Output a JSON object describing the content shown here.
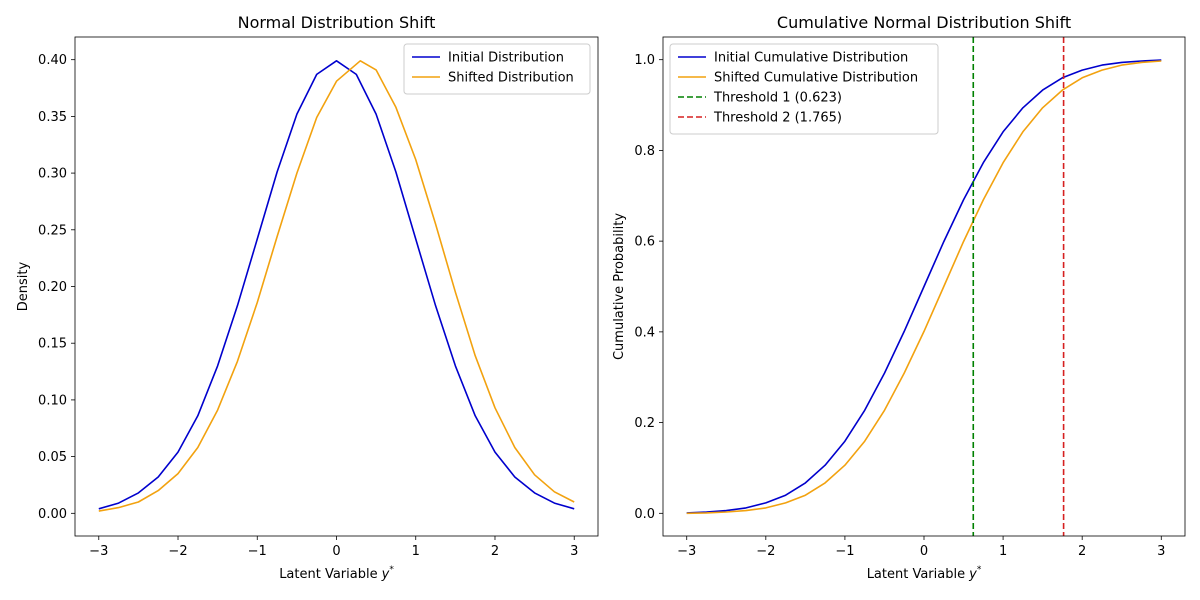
{
  "chart_data": [
    {
      "type": "line",
      "title": "Normal Distribution Shift",
      "xlabel": "Latent Variable",
      "xlabel_symbol": "y",
      "xlabel_sup": "*",
      "ylabel": "Density",
      "xlim": [
        -3.3,
        3.3
      ],
      "ylim": [
        -0.02,
        0.42
      ],
      "xticks": [
        -3,
        -2,
        -1,
        0,
        1,
        2,
        3
      ],
      "xtick_labels": [
        "−3",
        "−2",
        "−1",
        "0",
        "1",
        "2",
        "3"
      ],
      "yticks": [
        0.0,
        0.05,
        0.1,
        0.15,
        0.2,
        0.25,
        0.3,
        0.35,
        0.4
      ],
      "ytick_labels": [
        "0.00",
        "0.05",
        "0.10",
        "0.15",
        "0.20",
        "0.25",
        "0.30",
        "0.35",
        "0.40"
      ],
      "grid": false,
      "legend_position": "top-right",
      "series": [
        {
          "name": "Initial Distribution",
          "color": "#0000cd",
          "x": [
            -3.0,
            -2.75,
            -2.5,
            -2.25,
            -2.0,
            -1.75,
            -1.5,
            -1.25,
            -1.0,
            -0.75,
            -0.5,
            -0.25,
            0.0,
            0.25,
            0.5,
            0.75,
            1.0,
            1.25,
            1.5,
            1.75,
            2.0,
            2.25,
            2.5,
            2.75,
            3.0
          ],
          "values": [
            0.004,
            0.009,
            0.018,
            0.032,
            0.054,
            0.086,
            0.13,
            0.183,
            0.242,
            0.301,
            0.352,
            0.387,
            0.399,
            0.387,
            0.352,
            0.301,
            0.242,
            0.183,
            0.13,
            0.086,
            0.054,
            0.032,
            0.018,
            0.009,
            0.004
          ]
        },
        {
          "name": "Shifted Distribution",
          "color": "#f2a20f",
          "x": [
            -3.0,
            -2.75,
            -2.5,
            -2.25,
            -2.0,
            -1.75,
            -1.5,
            -1.25,
            -1.0,
            -0.75,
            -0.5,
            -0.25,
            0.0,
            0.3,
            0.5,
            0.75,
            1.0,
            1.25,
            1.5,
            1.75,
            2.0,
            2.25,
            2.5,
            2.75,
            3.0
          ],
          "values": [
            0.002,
            0.005,
            0.01,
            0.02,
            0.035,
            0.058,
            0.091,
            0.134,
            0.186,
            0.244,
            0.3,
            0.349,
            0.381,
            0.399,
            0.391,
            0.358,
            0.312,
            0.255,
            0.195,
            0.139,
            0.093,
            0.058,
            0.034,
            0.019,
            0.01
          ]
        }
      ]
    },
    {
      "type": "line",
      "title": "Cumulative Normal Distribution Shift",
      "xlabel": "Latent Variable",
      "xlabel_symbol": "y",
      "xlabel_sup": "*",
      "ylabel": "Cumulative Probability",
      "xlim": [
        -3.3,
        3.3
      ],
      "ylim": [
        -0.05,
        1.05
      ],
      "xticks": [
        -3,
        -2,
        -1,
        0,
        1,
        2,
        3
      ],
      "xtick_labels": [
        "−3",
        "−2",
        "−1",
        "0",
        "1",
        "2",
        "3"
      ],
      "yticks": [
        0.0,
        0.2,
        0.4,
        0.6,
        0.8,
        1.0
      ],
      "ytick_labels": [
        "0.0",
        "0.2",
        "0.4",
        "0.6",
        "0.8",
        "1.0"
      ],
      "grid": false,
      "legend_position": "top-left",
      "series": [
        {
          "name": "Initial Cumulative Distribution",
          "color": "#0000cd",
          "x": [
            -3.0,
            -2.75,
            -2.5,
            -2.25,
            -2.0,
            -1.75,
            -1.5,
            -1.25,
            -1.0,
            -0.75,
            -0.5,
            -0.25,
            0.0,
            0.25,
            0.5,
            0.75,
            1.0,
            1.25,
            1.5,
            1.75,
            2.0,
            2.25,
            2.5,
            2.75,
            3.0
          ],
          "values": [
            0.001,
            0.003,
            0.006,
            0.012,
            0.023,
            0.04,
            0.067,
            0.106,
            0.159,
            0.227,
            0.309,
            0.401,
            0.5,
            0.599,
            0.691,
            0.773,
            0.841,
            0.894,
            0.933,
            0.96,
            0.977,
            0.988,
            0.994,
            0.997,
            0.999
          ]
        },
        {
          "name": "Shifted Cumulative Distribution",
          "color": "#f2a20f",
          "x": [
            -3.0,
            -2.75,
            -2.5,
            -2.25,
            -2.0,
            -1.75,
            -1.5,
            -1.25,
            -1.0,
            -0.75,
            -0.5,
            -0.25,
            0.0,
            0.25,
            0.5,
            0.75,
            1.0,
            1.25,
            1.5,
            1.75,
            2.0,
            2.25,
            2.5,
            2.75,
            3.0
          ],
          "values": [
            0.0,
            0.001,
            0.003,
            0.006,
            0.012,
            0.023,
            0.04,
            0.067,
            0.106,
            0.159,
            0.227,
            0.309,
            0.401,
            0.5,
            0.599,
            0.691,
            0.773,
            0.841,
            0.894,
            0.933,
            0.96,
            0.977,
            0.988,
            0.994,
            0.997
          ]
        }
      ],
      "thresholds": [
        {
          "name": "Threshold 1 (0.623)",
          "x": 0.623,
          "color": "#008000"
        },
        {
          "name": "Threshold 2 (1.765)",
          "x": 1.765,
          "color": "#d62020"
        }
      ]
    }
  ]
}
